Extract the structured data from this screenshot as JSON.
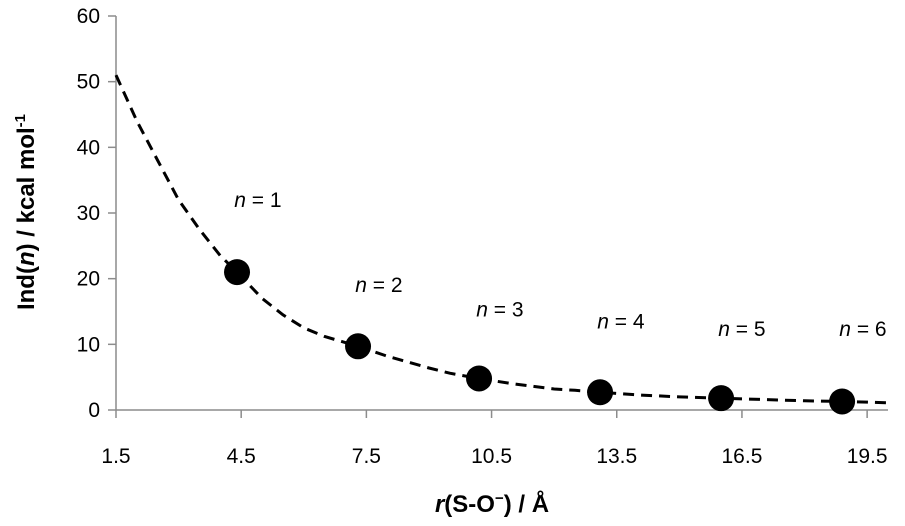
{
  "chart_data": {
    "type": "scatter",
    "xlabel": {
      "italic": "r",
      "rest": "(S-O",
      "sup": "−",
      "close": ") / Å"
    },
    "ylabel": {
      "text": "Ind(",
      "italic": "n",
      "rest": ") / kcal mol",
      "sup": "-1"
    },
    "xlim": [
      1.5,
      20.0
    ],
    "ylim": [
      0,
      60
    ],
    "x_ticks": [
      "1.5",
      "4.5",
      "7.5",
      "10.5",
      "13.5",
      "16.5",
      "19.5"
    ],
    "y_ticks": [
      "0",
      "10",
      "20",
      "30",
      "40",
      "50",
      "60"
    ],
    "grid": false,
    "series": [
      {
        "marker": "circle",
        "color": "#000000",
        "points": [
          {
            "x": 4.4,
            "y": 21.0
          },
          {
            "x": 7.3,
            "y": 9.7
          },
          {
            "x": 10.2,
            "y": 4.8
          },
          {
            "x": 13.1,
            "y": 2.7
          },
          {
            "x": 16.0,
            "y": 1.8
          },
          {
            "x": 18.9,
            "y": 1.3
          }
        ]
      }
    ],
    "trendline": {
      "style": "dashed",
      "color": "#000000",
      "points": [
        [
          1.5,
          51.0
        ],
        [
          2.0,
          44.0
        ],
        [
          2.5,
          38.0
        ],
        [
          3.0,
          32.0
        ],
        [
          3.5,
          27.5
        ],
        [
          4.0,
          23.5
        ],
        [
          4.4,
          21.0
        ],
        [
          5.0,
          17.0
        ],
        [
          5.5,
          14.5
        ],
        [
          6.0,
          12.5
        ],
        [
          6.5,
          11.2
        ],
        [
          7.3,
          9.7
        ],
        [
          8.0,
          8.2
        ],
        [
          8.5,
          7.3
        ],
        [
          9.0,
          6.4
        ],
        [
          9.5,
          5.6
        ],
        [
          10.2,
          4.8
        ],
        [
          11.0,
          4.0
        ],
        [
          11.5,
          3.6
        ],
        [
          12.0,
          3.2
        ],
        [
          12.5,
          3.0
        ],
        [
          13.1,
          2.7
        ],
        [
          14.0,
          2.3
        ],
        [
          15.0,
          2.0
        ],
        [
          16.0,
          1.8
        ],
        [
          17.0,
          1.6
        ],
        [
          18.0,
          1.4
        ],
        [
          18.9,
          1.3
        ],
        [
          19.5,
          1.2
        ],
        [
          20.0,
          1.1
        ]
      ]
    },
    "annotations": [
      {
        "italic": "n",
        "rest": " = 1",
        "x": 4.9,
        "y": 32
      },
      {
        "italic": "n",
        "rest": " = 2",
        "x": 7.8,
        "y": 19
      },
      {
        "italic": "n",
        "rest": " = 3",
        "x": 10.7,
        "y": 15.3
      },
      {
        "italic": "n",
        "rest": " = 4",
        "x": 13.6,
        "y": 13.5
      },
      {
        "italic": "n",
        "rest": " = 5",
        "x": 16.5,
        "y": 12.3
      },
      {
        "italic": "n",
        "rest": " = 6",
        "x": 19.4,
        "y": 12.3
      }
    ]
  }
}
